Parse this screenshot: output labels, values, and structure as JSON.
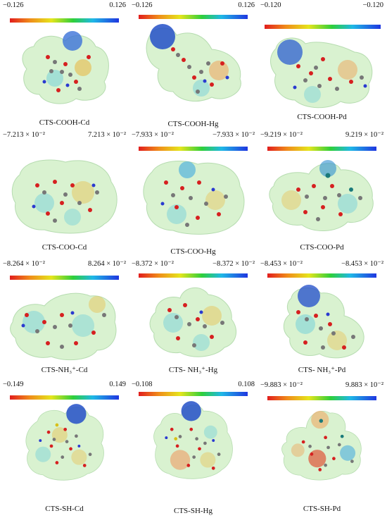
{
  "panels": [
    {
      "name": "CTS-COOH-Cd",
      "min": "−0.126",
      "max": "0.126"
    },
    {
      "name": "CTS-COOH-Hg",
      "min": "−0.126",
      "max": "0.126"
    },
    {
      "name": "CTS-COOH-Pd",
      "min": "−0.120",
      "max": "−0.120"
    },
    {
      "name": "CTS-COO-Cd",
      "min": "−7.213 × 10⁻²",
      "max": "7.213 × 10⁻²"
    },
    {
      "name": "CTS-COO-Hg",
      "min": "−7.933 × 10⁻²",
      "max": "−7.933 × 10⁻²"
    },
    {
      "name": "CTS-COO-Pd",
      "min": "−9.219 × 10⁻²",
      "max": "9.219 × 10⁻²"
    },
    {
      "name": "CTS-NH₃⁺-Cd",
      "min": "−8.264 × 10⁻²",
      "max": "8.264 × 10⁻²"
    },
    {
      "name": "CTS- NH₃⁺-Hg",
      "min": "−8.372 × 10⁻²",
      "max": "−8.372 × 10⁻²"
    },
    {
      "name": "CTS- NH₃⁺-Pd",
      "min": "−8.453 × 10⁻²",
      "max": "−8.453 × 10⁻²"
    },
    {
      "name": "CTS-SH-Cd",
      "min": "−0.149",
      "max": "0.149"
    },
    {
      "name": "CTS-SH-Hg",
      "min": "−0.108",
      "max": "0.108"
    },
    {
      "name": "CTS-SH-Pd",
      "min": "−9.883 × 10⁻²",
      "max": "9.883 × 10⁻²"
    }
  ]
}
